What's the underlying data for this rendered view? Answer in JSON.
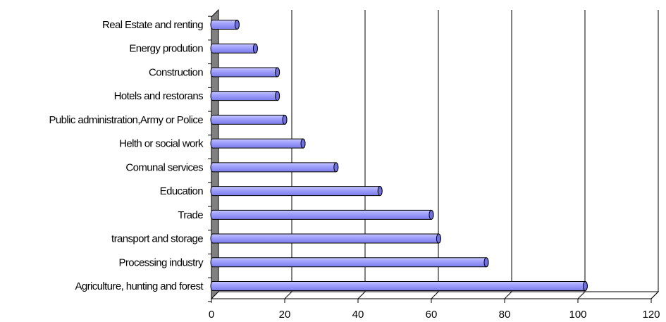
{
  "chart_data": {
    "type": "bar",
    "orientation": "horizontal",
    "style": "3d-cylinder",
    "categories": [
      "Real Estate and renting",
      "Energy prodution",
      "Construction",
      "Hotels and restorans",
      "Public administration,Army or Police",
      "Helth or social work",
      "Comunal services",
      "Education",
      "Trade",
      "transport and storage",
      "Processing industry",
      "Agriculture, hunting and forest"
    ],
    "values": [
      7,
      12,
      18,
      18,
      20,
      25,
      34,
      46,
      60,
      62,
      75,
      102
    ],
    "xlim": [
      0,
      120
    ],
    "xticks": [
      0,
      20,
      40,
      60,
      80,
      100,
      120
    ],
    "grid": "vertical",
    "legend": "none",
    "title": "",
    "xlabel": "",
    "ylabel": "",
    "colors": {
      "bar_fill": "#9999ff",
      "bar_cap": "#7070e0",
      "wall": "#808080",
      "grid": "#000000"
    }
  }
}
